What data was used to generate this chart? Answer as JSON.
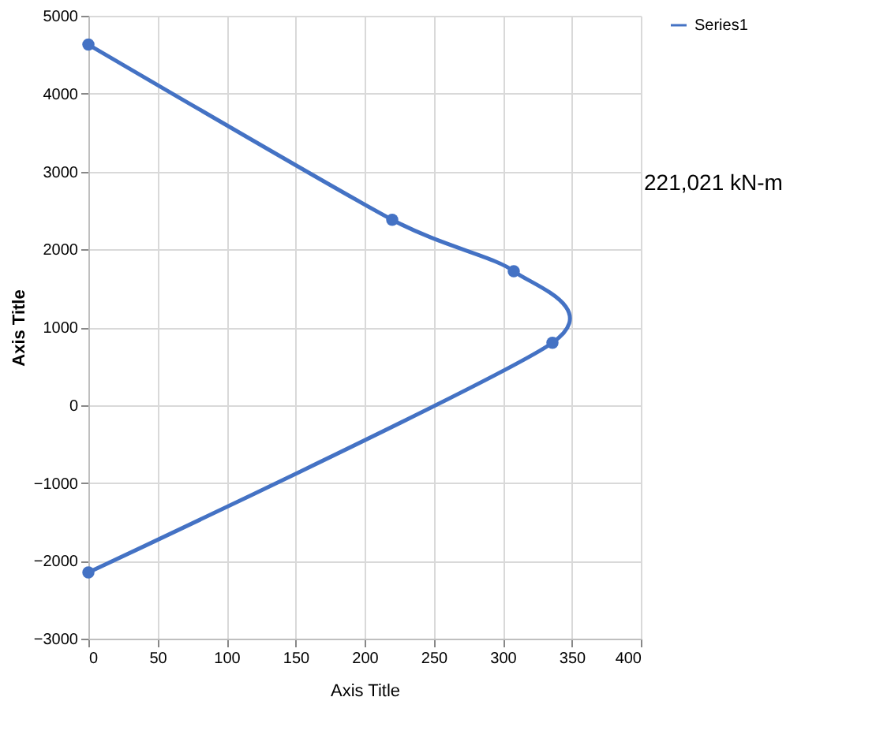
{
  "chart_data": {
    "type": "line",
    "xlabel": "Axis Title",
    "ylabel": "Axis Title",
    "x": [
      0,
      220,
      308,
      336,
      0
    ],
    "series": [
      {
        "name": "Series1",
        "color": "#4472c4",
        "values": [
          4630,
          2380,
          1720,
          800,
          -2150
        ]
      }
    ],
    "xlim": [
      0,
      400
    ],
    "xticks": [
      0,
      50,
      100,
      150,
      200,
      250,
      300,
      350,
      400
    ],
    "ylim": [
      -3000,
      5000
    ],
    "yticks": [
      -3000,
      -2000,
      -1000,
      0,
      1000,
      2000,
      3000,
      4000,
      5000
    ],
    "grid": true,
    "legend": "right",
    "marker": "circle",
    "line_style": "solid",
    "annotations": [
      "221,021 kN-m"
    ]
  }
}
